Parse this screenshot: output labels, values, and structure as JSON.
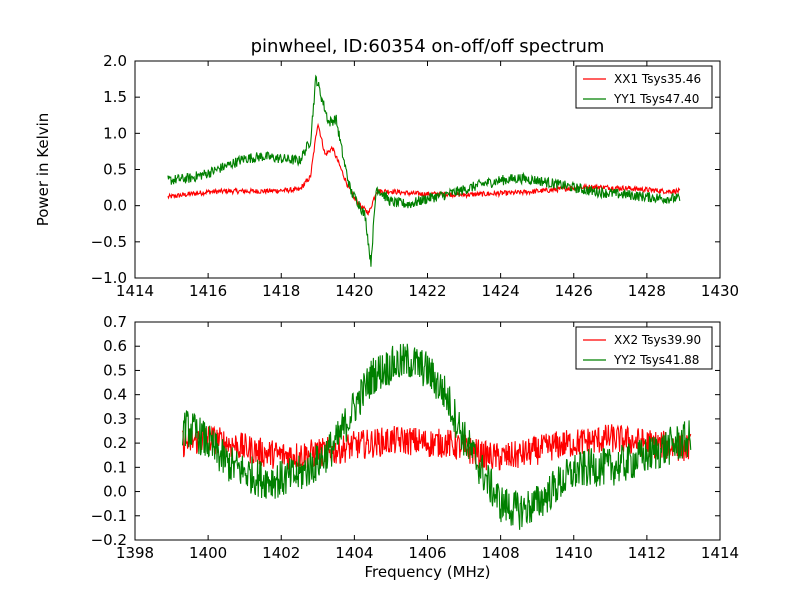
{
  "chart_data": [
    {
      "type": "line",
      "title": "pinwheel, ID:60354 on-off/off spectrum",
      "xlabel": "",
      "ylabel": "Power in Kelvin",
      "xlim": [
        1414,
        1430
      ],
      "ylim": [
        -1.0,
        2.0
      ],
      "xticks": [
        1414,
        1416,
        1418,
        1420,
        1422,
        1424,
        1426,
        1428,
        1430
      ],
      "yticks": [
        -1.0,
        -0.5,
        0.0,
        0.5,
        1.0,
        1.5,
        2.0
      ],
      "xtick_labels": [
        "1414",
        "1416",
        "1418",
        "1420",
        "1422",
        "1424",
        "1426",
        "1428",
        "1430"
      ],
      "ytick_labels": [
        "−1.0",
        "−0.5",
        "0.0",
        "0.5",
        "1.0",
        "1.5",
        "2.0"
      ],
      "grid": false,
      "legend_position": "top-right",
      "series": [
        {
          "name": "XX1 Tsys35.46",
          "color": "#ff0000",
          "x": [
            1414.9,
            1415.5,
            1416.0,
            1416.5,
            1417.0,
            1417.5,
            1418.0,
            1418.5,
            1418.8,
            1419.0,
            1419.2,
            1419.4,
            1419.6,
            1419.8,
            1420.0,
            1420.2,
            1420.4,
            1420.6,
            1421.0,
            1421.5,
            1422.0,
            1422.5,
            1423.0,
            1423.5,
            1424.0,
            1424.5,
            1425.0,
            1425.5,
            1426.0,
            1426.5,
            1427.0,
            1427.5,
            1428.0,
            1428.5,
            1428.9
          ],
          "y": [
            0.12,
            0.16,
            0.19,
            0.2,
            0.2,
            0.2,
            0.21,
            0.22,
            0.4,
            1.15,
            0.7,
            0.8,
            0.55,
            0.3,
            0.1,
            -0.02,
            -0.1,
            0.2,
            0.2,
            0.17,
            0.16,
            0.16,
            0.15,
            0.16,
            0.17,
            0.18,
            0.2,
            0.22,
            0.25,
            0.26,
            0.25,
            0.24,
            0.22,
            0.2,
            0.2
          ]
        },
        {
          "name": "YY1 Tsys47.40",
          "color": "#008000",
          "x": [
            1414.9,
            1415.5,
            1416.0,
            1416.5,
            1417.0,
            1417.5,
            1418.0,
            1418.5,
            1418.8,
            1418.95,
            1419.1,
            1419.3,
            1419.5,
            1419.7,
            1419.9,
            1420.1,
            1420.3,
            1420.45,
            1420.6,
            1421.0,
            1421.5,
            1422.0,
            1422.5,
            1423.0,
            1423.5,
            1424.0,
            1424.5,
            1425.0,
            1425.5,
            1426.0,
            1426.5,
            1427.0,
            1427.5,
            1428.0,
            1428.5,
            1428.9
          ],
          "y": [
            0.35,
            0.38,
            0.45,
            0.55,
            0.65,
            0.68,
            0.65,
            0.62,
            0.9,
            1.78,
            1.5,
            1.15,
            1.2,
            0.65,
            0.2,
            0.05,
            -0.15,
            -0.8,
            0.25,
            0.05,
            0.02,
            0.1,
            0.15,
            0.22,
            0.3,
            0.35,
            0.38,
            0.35,
            0.3,
            0.25,
            0.2,
            0.17,
            0.15,
            0.12,
            0.1,
            0.1
          ]
        }
      ]
    },
    {
      "type": "line",
      "title": "",
      "xlabel": "Frequency (MHz)",
      "ylabel": "",
      "xlim": [
        1398,
        1414
      ],
      "ylim": [
        -0.2,
        0.7
      ],
      "xticks": [
        1398,
        1400,
        1402,
        1404,
        1406,
        1408,
        1410,
        1412,
        1414
      ],
      "yticks": [
        -0.2,
        -0.1,
        0.0,
        0.1,
        0.2,
        0.3,
        0.4,
        0.5,
        0.6,
        0.7
      ],
      "xtick_labels": [
        "1398",
        "1400",
        "1402",
        "1404",
        "1406",
        "1408",
        "1410",
        "1412",
        "1414"
      ],
      "ytick_labels": [
        "−0.2",
        "−0.1",
        "0.0",
        "0.1",
        "0.2",
        "0.3",
        "0.4",
        "0.5",
        "0.6",
        "0.7"
      ],
      "grid": false,
      "legend_position": "top-right",
      "series": [
        {
          "name": "XX2 Tsys39.90",
          "color": "#ff0000",
          "x": [
            1399.3,
            1400.0,
            1400.5,
            1401.0,
            1401.5,
            1402.0,
            1402.5,
            1403.0,
            1403.5,
            1404.0,
            1404.5,
            1405.0,
            1405.5,
            1406.0,
            1406.5,
            1407.0,
            1407.5,
            1408.0,
            1408.5,
            1409.0,
            1409.5,
            1410.0,
            1410.5,
            1411.0,
            1411.5,
            1412.0,
            1412.5,
            1413.2
          ],
          "y": [
            0.2,
            0.22,
            0.2,
            0.18,
            0.16,
            0.15,
            0.15,
            0.16,
            0.17,
            0.19,
            0.2,
            0.21,
            0.21,
            0.2,
            0.2,
            0.18,
            0.15,
            0.14,
            0.15,
            0.17,
            0.19,
            0.2,
            0.21,
            0.22,
            0.21,
            0.2,
            0.19,
            0.18
          ]
        },
        {
          "name": "YY2 Tsys41.88",
          "color": "#008000",
          "x": [
            1399.3,
            1399.7,
            1400.0,
            1400.5,
            1401.0,
            1401.5,
            1402.0,
            1402.5,
            1403.0,
            1403.5,
            1404.0,
            1404.5,
            1405.0,
            1405.5,
            1406.0,
            1406.5,
            1407.0,
            1407.5,
            1408.0,
            1408.5,
            1409.0,
            1409.5,
            1410.0,
            1410.5,
            1411.0,
            1411.5,
            1412.0,
            1412.5,
            1413.2
          ],
          "y": [
            0.27,
            0.24,
            0.2,
            0.12,
            0.08,
            0.05,
            0.05,
            0.07,
            0.12,
            0.2,
            0.35,
            0.48,
            0.52,
            0.54,
            0.5,
            0.4,
            0.22,
            0.08,
            -0.05,
            -0.08,
            -0.05,
            0.02,
            0.08,
            0.1,
            0.1,
            0.12,
            0.15,
            0.18,
            0.22
          ]
        }
      ]
    }
  ]
}
